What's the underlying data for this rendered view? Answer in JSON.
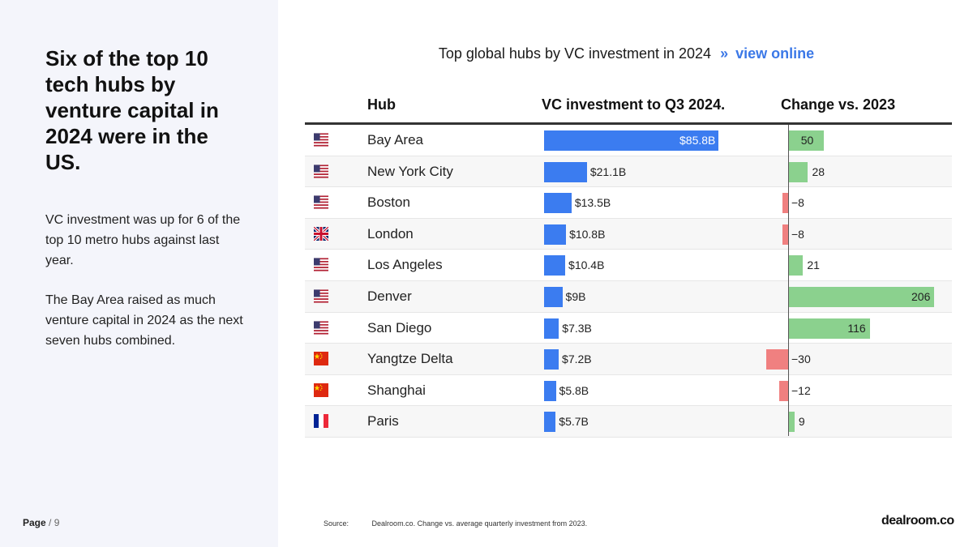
{
  "headline": "Six of the top 10 tech hubs by venture capital in 2024 were in the US.",
  "paragraphs": [
    "VC investment was up for 6 of the top 10 metro hubs against last year.",
    "The Bay Area raised as much venture capital in 2024 as the next seven hubs combined."
  ],
  "page": {
    "label": "Page",
    "number": "/ 9"
  },
  "chart_title": {
    "text": "Top global hubs by VC investment in 2024",
    "separator": "»",
    "link": "view online"
  },
  "columns": {
    "hub": "Hub",
    "vc": "VC investment to Q3 2024.",
    "change": "Change vs. 2023"
  },
  "colors": {
    "vc_bar": "#3b7cf0",
    "positive": "#8bd18e",
    "negative": "#f08080",
    "link": "#3b78e7"
  },
  "chart_data": {
    "type": "table",
    "title": "Top global hubs by VC investment in 2024",
    "columns": [
      "Hub",
      "VC investment to Q3 2024.",
      "Change vs. 2023"
    ],
    "rows": [
      {
        "flag": "us",
        "hub": "Bay Area",
        "vc": 85.8,
        "vc_label": "$85.8B",
        "change": 50,
        "change_label": "50"
      },
      {
        "flag": "us",
        "hub": "New York City",
        "vc": 21.1,
        "vc_label": "$21.1B",
        "change": 28,
        "change_label": "28"
      },
      {
        "flag": "us",
        "hub": "Boston",
        "vc": 13.5,
        "vc_label": "$13.5B",
        "change": -8,
        "change_label": "−8"
      },
      {
        "flag": "uk",
        "hub": "London",
        "vc": 10.8,
        "vc_label": "$10.8B",
        "change": -8,
        "change_label": "−8"
      },
      {
        "flag": "us",
        "hub": "Los Angeles",
        "vc": 10.4,
        "vc_label": "$10.4B",
        "change": 21,
        "change_label": "21"
      },
      {
        "flag": "us",
        "hub": "Denver",
        "vc": 9,
        "vc_label": "$9B",
        "change": 206,
        "change_label": "206"
      },
      {
        "flag": "us",
        "hub": "San Diego",
        "vc": 7.3,
        "vc_label": "$7.3B",
        "change": 116,
        "change_label": "116"
      },
      {
        "flag": "cn",
        "hub": "Yangtze Delta",
        "vc": 7.2,
        "vc_label": "$7.2B",
        "change": -30,
        "change_label": "−30"
      },
      {
        "flag": "cn",
        "hub": "Shanghai",
        "vc": 5.8,
        "vc_label": "$5.8B",
        "change": -12,
        "change_label": "−12"
      },
      {
        "flag": "fr",
        "hub": "Paris",
        "vc": 5.7,
        "vc_label": "$5.7B",
        "change": 9,
        "change_label": "9"
      }
    ],
    "vc_max": 85.8,
    "change_max": 206
  },
  "source": {
    "label": "Source:",
    "text": "Dealroom.co. Change vs. average quarterly investment from 2023."
  },
  "logo": "dealroom.co"
}
